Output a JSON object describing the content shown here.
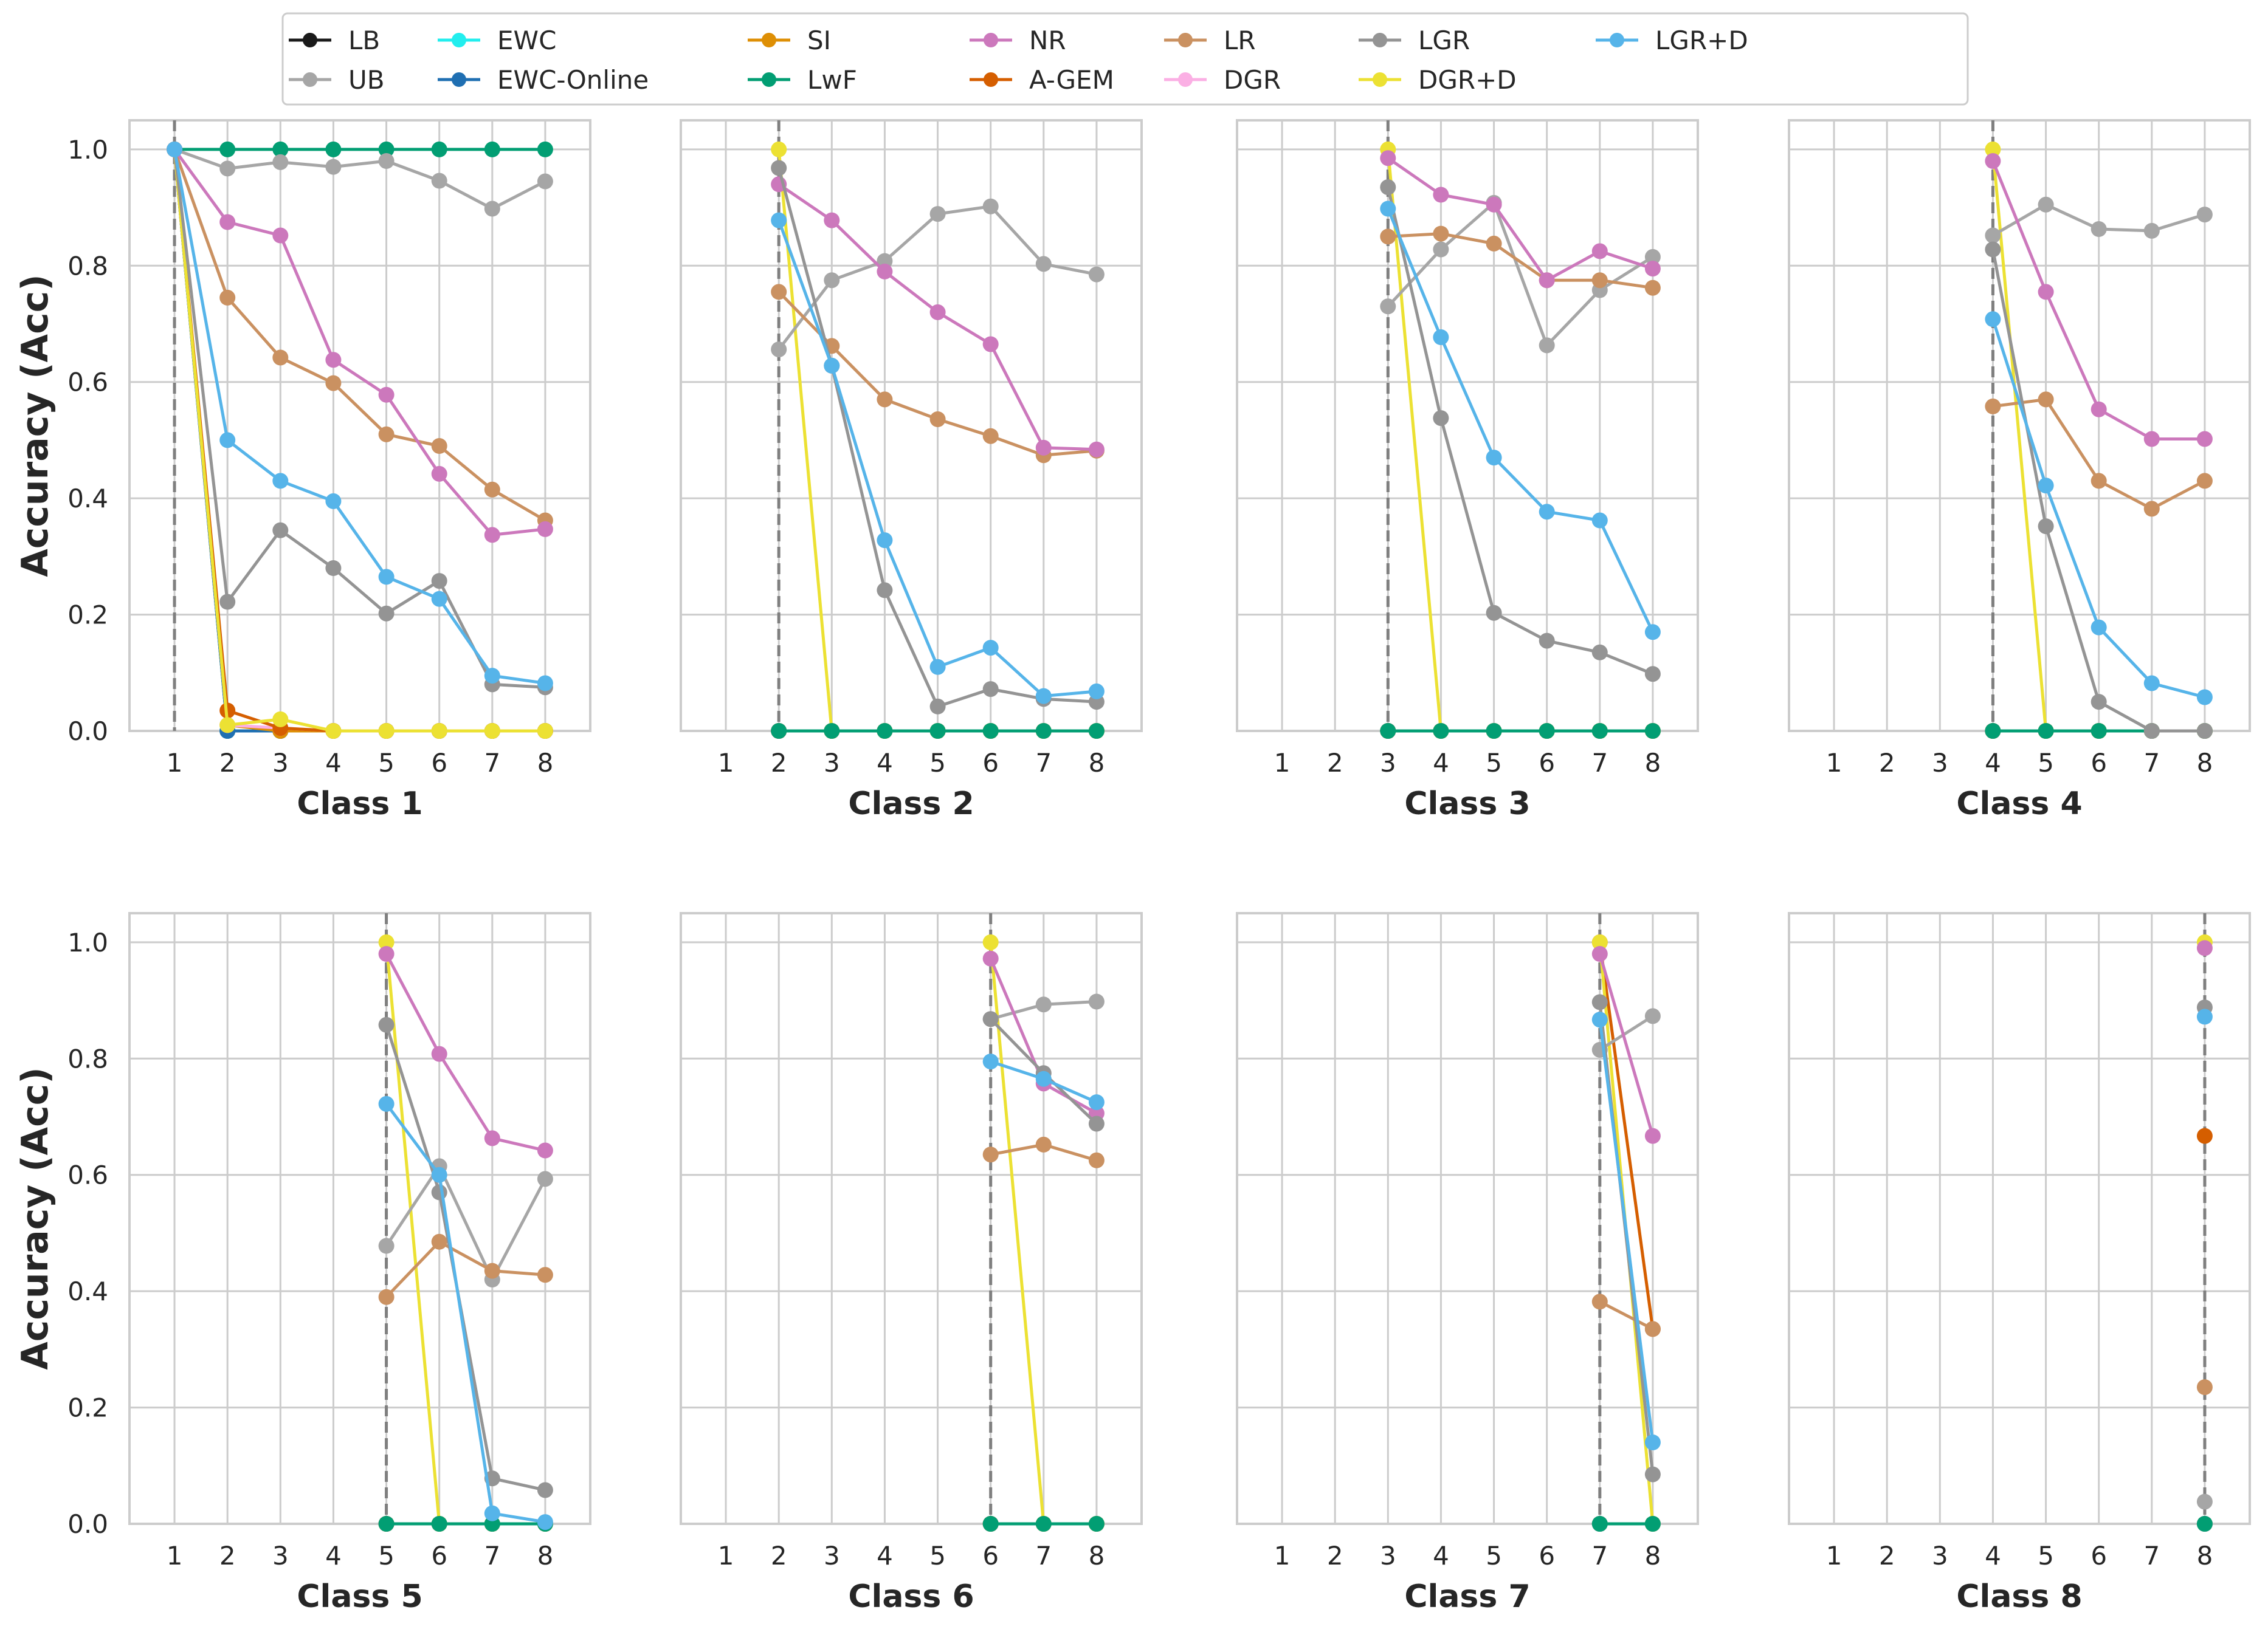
{
  "chart_data": {
    "type": "line",
    "ylabel": "Accuracy (Acc)",
    "x": [
      1,
      2,
      3,
      4,
      5,
      6,
      7,
      8
    ],
    "ylim": [
      0,
      1.05
    ],
    "yticks": [
      "0.0",
      "0.2",
      "0.4",
      "0.6",
      "0.8",
      "1.0"
    ],
    "grid": true,
    "legend_position": "top",
    "legend": [
      {
        "name": "LB",
        "color": "#1a1a1a"
      },
      {
        "name": "UB",
        "color": "#a6a6a6"
      },
      {
        "name": "EWC",
        "color": "#22eeee"
      },
      {
        "name": "EWC-Online",
        "color": "#1f6fb2"
      },
      {
        "name": "SI",
        "color": "#de8f05"
      },
      {
        "name": "LwF",
        "color": "#029e73"
      },
      {
        "name": "NR",
        "color": "#cc78bc"
      },
      {
        "name": "A-GEM",
        "color": "#d55e00"
      },
      {
        "name": "LR",
        "color": "#ca9161"
      },
      {
        "name": "DGR",
        "color": "#fbafe4"
      },
      {
        "name": "LGR",
        "color": "#949494"
      },
      {
        "name": "DGR+D",
        "color": "#ece133"
      },
      {
        "name": "LGR+D",
        "color": "#56b4e9"
      }
    ],
    "panels": [
      {
        "title": "Class 1",
        "start": 1,
        "series": {
          "LB": [
            1.0,
            0,
            0,
            0,
            0,
            0,
            0,
            0
          ],
          "EWC": [
            1.0,
            0,
            0,
            0,
            0,
            0,
            0,
            0
          ],
          "EWC-Online": [
            1.0,
            0,
            0,
            0,
            0,
            0,
            0,
            0
          ],
          "SI": [
            1.0,
            0.01,
            0,
            0,
            0,
            0,
            0,
            0
          ],
          "A-GEM": [
            1.0,
            0.035,
            0.005,
            0,
            0,
            0,
            0,
            0
          ],
          "DGR": [
            1.0,
            0.01,
            0.005,
            0,
            0,
            0,
            0,
            0
          ],
          "DGR+D": [
            1.0,
            0.01,
            0.02,
            0,
            0,
            0,
            0,
            0
          ],
          "LGR": [
            1.0,
            0.222,
            0.345,
            0.28,
            0.202,
            0.258,
            0.08,
            0.075
          ],
          "LGR+D": [
            1.0,
            0.5,
            0.43,
            0.395,
            0.265,
            0.227,
            0.095,
            0.082
          ],
          "LR": [
            1.0,
            0.745,
            0.642,
            0.598,
            0.51,
            0.49,
            0.415,
            0.362
          ],
          "NR": [
            1.0,
            0.875,
            0.852,
            0.638,
            0.578,
            0.442,
            0.337,
            0.347
          ],
          "UB": [
            1.0,
            0.967,
            0.978,
            0.97,
            0.98,
            0.946,
            0.898,
            0.945
          ],
          "LwF": [
            1.0,
            1.0,
            1.0,
            1.0,
            1.0,
            1.0,
            1.0,
            1.0
          ]
        }
      },
      {
        "title": "Class 2",
        "start": 2,
        "series": {
          "LB": [
            null,
            0,
            0,
            0,
            0,
            0,
            0,
            0
          ],
          "EWC": [
            null,
            0,
            0,
            0,
            0,
            0,
            0,
            0
          ],
          "EWC-Online": [
            null,
            0,
            0,
            0,
            0,
            0,
            0,
            0
          ],
          "SI": [
            null,
            0,
            0,
            0,
            0,
            0,
            0,
            0
          ],
          "A-GEM": [
            null,
            0,
            0,
            0,
            0,
            0,
            0,
            0
          ],
          "DGR": [
            null,
            0,
            0,
            0,
            0,
            0,
            0,
            0
          ],
          "LwF": [
            null,
            0,
            0,
            0,
            0,
            0,
            0,
            0
          ],
          "DGR+D": [
            null,
            1.0,
            0,
            0,
            0,
            0,
            0,
            0
          ],
          "UB": [
            null,
            0.656,
            0.775,
            0.808,
            0.889,
            0.902,
            0.803,
            0.785
          ],
          "NR": [
            null,
            0.94,
            0.878,
            0.79,
            0.72,
            0.665,
            0.487,
            0.484
          ],
          "LR": [
            null,
            0.755,
            0.662,
            0.57,
            0.536,
            0.507,
            0.474,
            0.482
          ],
          "LGR": [
            null,
            0.968,
            0.628,
            0.242,
            0.042,
            0.072,
            0.055,
            0.05
          ],
          "LGR+D": [
            null,
            0.878,
            0.628,
            0.328,
            0.11,
            0.143,
            0.06,
            0.068
          ]
        }
      },
      {
        "title": "Class 3",
        "start": 3,
        "series": {
          "LB": [
            null,
            null,
            0,
            0,
            0,
            0,
            0,
            0
          ],
          "EWC": [
            null,
            null,
            0,
            0,
            0,
            0,
            0,
            0
          ],
          "EWC-Online": [
            null,
            null,
            0,
            0,
            0,
            0,
            0,
            0
          ],
          "SI": [
            null,
            null,
            0,
            0,
            0,
            0,
            0,
            0
          ],
          "A-GEM": [
            null,
            null,
            0,
            0,
            0,
            0,
            0,
            0
          ],
          "DGR": [
            null,
            null,
            0,
            0,
            0,
            0,
            0,
            0
          ],
          "LwF": [
            null,
            null,
            0,
            0,
            0,
            0,
            0,
            0
          ],
          "DGR+D": [
            null,
            null,
            1.0,
            0,
            0,
            0,
            0,
            0
          ],
          "UB": [
            null,
            null,
            0.73,
            0.828,
            0.908,
            0.663,
            0.758,
            0.815
          ],
          "NR": [
            null,
            null,
            0.985,
            0.922,
            0.905,
            0.775,
            0.825,
            0.795
          ],
          "LR": [
            null,
            null,
            0.85,
            0.855,
            0.838,
            0.775,
            0.775,
            0.762
          ],
          "LGR": [
            null,
            null,
            0.935,
            0.538,
            0.203,
            0.155,
            0.135,
            0.098
          ],
          "LGR+D": [
            null,
            null,
            0.898,
            0.677,
            0.47,
            0.377,
            0.362,
            0.17
          ]
        }
      },
      {
        "title": "Class 4",
        "start": 4,
        "series": {
          "LB": [
            null,
            null,
            null,
            0,
            0,
            0,
            0,
            0
          ],
          "EWC": [
            null,
            null,
            null,
            0,
            0,
            0,
            0,
            0
          ],
          "EWC-Online": [
            null,
            null,
            null,
            0,
            0,
            0,
            0,
            0
          ],
          "SI": [
            null,
            null,
            null,
            0,
            0,
            0,
            0,
            0
          ],
          "A-GEM": [
            null,
            null,
            null,
            0,
            0,
            0,
            0,
            0
          ],
          "DGR": [
            null,
            null,
            null,
            0,
            0,
            0,
            0,
            0
          ],
          "LwF": [
            null,
            null,
            null,
            0,
            0,
            0,
            0,
            0
          ],
          "DGR+D": [
            null,
            null,
            null,
            1.0,
            0,
            0,
            0,
            0
          ],
          "UB": [
            null,
            null,
            null,
            0.852,
            0.905,
            0.863,
            0.86,
            0.888
          ],
          "NR": [
            null,
            null,
            null,
            0.98,
            0.755,
            0.553,
            0.502,
            0.502
          ],
          "LR": [
            null,
            null,
            null,
            0.558,
            0.57,
            0.43,
            0.382,
            0.43
          ],
          "LGR": [
            null,
            null,
            null,
            0.828,
            0.352,
            0.05,
            0,
            0
          ],
          "LGR+D": [
            null,
            null,
            null,
            0.708,
            0.422,
            0.178,
            0.082,
            0.058
          ]
        }
      },
      {
        "title": "Class 5",
        "start": 5,
        "series": {
          "LB": [
            null,
            null,
            null,
            null,
            0,
            0,
            0,
            0
          ],
          "EWC": [
            null,
            null,
            null,
            null,
            0,
            0,
            0,
            0
          ],
          "EWC-Online": [
            null,
            null,
            null,
            null,
            0,
            0,
            0,
            0
          ],
          "SI": [
            null,
            null,
            null,
            null,
            0,
            0,
            0,
            0
          ],
          "A-GEM": [
            null,
            null,
            null,
            null,
            0,
            0,
            0,
            0
          ],
          "DGR": [
            null,
            null,
            null,
            null,
            0,
            0,
            0,
            0
          ],
          "LwF": [
            null,
            null,
            null,
            null,
            0,
            0,
            0,
            0
          ],
          "DGR+D": [
            null,
            null,
            null,
            null,
            1.0,
            0,
            0,
            0
          ],
          "UB": [
            null,
            null,
            null,
            null,
            0.478,
            0.615,
            0.42,
            0.593
          ],
          "NR": [
            null,
            null,
            null,
            null,
            0.98,
            0.808,
            0.663,
            0.642
          ],
          "LR": [
            null,
            null,
            null,
            null,
            0.39,
            0.485,
            0.435,
            0.428
          ],
          "LGR": [
            null,
            null,
            null,
            null,
            0.858,
            0.57,
            0.078,
            0.058
          ],
          "LGR+D": [
            null,
            null,
            null,
            null,
            0.722,
            0.6,
            0.018,
            0.003
          ]
        }
      },
      {
        "title": "Class 6",
        "start": 6,
        "series": {
          "LB": [
            null,
            null,
            null,
            null,
            null,
            0,
            0,
            0
          ],
          "EWC": [
            null,
            null,
            null,
            null,
            null,
            0,
            0,
            0
          ],
          "EWC-Online": [
            null,
            null,
            null,
            null,
            null,
            0,
            0,
            0
          ],
          "SI": [
            null,
            null,
            null,
            null,
            null,
            0,
            0,
            0
          ],
          "A-GEM": [
            null,
            null,
            null,
            null,
            null,
            0,
            0,
            0
          ],
          "DGR": [
            null,
            null,
            null,
            null,
            null,
            0,
            0,
            0
          ],
          "LwF": [
            null,
            null,
            null,
            null,
            null,
            0,
            0,
            0
          ],
          "DGR+D": [
            null,
            null,
            null,
            null,
            null,
            1.0,
            0,
            0
          ],
          "UB": [
            null,
            null,
            null,
            null,
            null,
            0.868,
            0.893,
            0.898
          ],
          "NR": [
            null,
            null,
            null,
            null,
            null,
            0.972,
            0.757,
            0.706
          ],
          "LR": [
            null,
            null,
            null,
            null,
            null,
            0.635,
            0.652,
            0.625
          ],
          "LGR": [
            null,
            null,
            null,
            null,
            null,
            0.868,
            0.775,
            0.688
          ],
          "LGR+D": [
            null,
            null,
            null,
            null,
            null,
            0.795,
            0.765,
            0.725
          ]
        }
      },
      {
        "title": "Class 7",
        "start": 7,
        "series": {
          "LB": [
            null,
            null,
            null,
            null,
            null,
            null,
            0,
            0
          ],
          "EWC": [
            null,
            null,
            null,
            null,
            null,
            null,
            0,
            0
          ],
          "EWC-Online": [
            null,
            null,
            null,
            null,
            null,
            null,
            0,
            0
          ],
          "SI": [
            null,
            null,
            null,
            null,
            null,
            null,
            0,
            0
          ],
          "DGR": [
            null,
            null,
            null,
            null,
            null,
            null,
            0,
            0
          ],
          "LwF": [
            null,
            null,
            null,
            null,
            null,
            null,
            0,
            0
          ],
          "DGR+D": [
            null,
            null,
            null,
            null,
            null,
            null,
            1.0,
            0
          ],
          "A-GEM": [
            null,
            null,
            null,
            null,
            null,
            null,
            1.0,
            0.335
          ],
          "UB": [
            null,
            null,
            null,
            null,
            null,
            null,
            0.815,
            0.873
          ],
          "NR": [
            null,
            null,
            null,
            null,
            null,
            null,
            0.98,
            0.667
          ],
          "LR": [
            null,
            null,
            null,
            null,
            null,
            null,
            0.382,
            0.335
          ],
          "LGR": [
            null,
            null,
            null,
            null,
            null,
            null,
            0.897,
            0.085
          ],
          "LGR+D": [
            null,
            null,
            null,
            null,
            null,
            null,
            0.867,
            0.14
          ]
        }
      },
      {
        "title": "Class 8",
        "start": 8,
        "series": {
          "LB": [
            null,
            null,
            null,
            null,
            null,
            null,
            null,
            0
          ],
          "EWC": [
            null,
            null,
            null,
            null,
            null,
            null,
            null,
            0
          ],
          "EWC-Online": [
            null,
            null,
            null,
            null,
            null,
            null,
            null,
            0
          ],
          "SI": [
            null,
            null,
            null,
            null,
            null,
            null,
            null,
            0
          ],
          "DGR": [
            null,
            null,
            null,
            null,
            null,
            null,
            null,
            0
          ],
          "LwF": [
            null,
            null,
            null,
            null,
            null,
            null,
            null,
            0
          ],
          "UB": [
            null,
            null,
            null,
            null,
            null,
            null,
            null,
            0.038
          ],
          "LR": [
            null,
            null,
            null,
            null,
            null,
            null,
            null,
            0.235
          ],
          "A-GEM": [
            null,
            null,
            null,
            null,
            null,
            null,
            null,
            0.667
          ],
          "LGR+D": [
            null,
            null,
            null,
            null,
            null,
            null,
            null,
            0.872
          ],
          "LGR": [
            null,
            null,
            null,
            null,
            null,
            null,
            null,
            0.888
          ],
          "NR": [
            null,
            null,
            null,
            null,
            null,
            null,
            null,
            0.99
          ],
          "DGR+D": [
            null,
            null,
            null,
            null,
            null,
            null,
            null,
            1.0
          ]
        }
      }
    ]
  }
}
